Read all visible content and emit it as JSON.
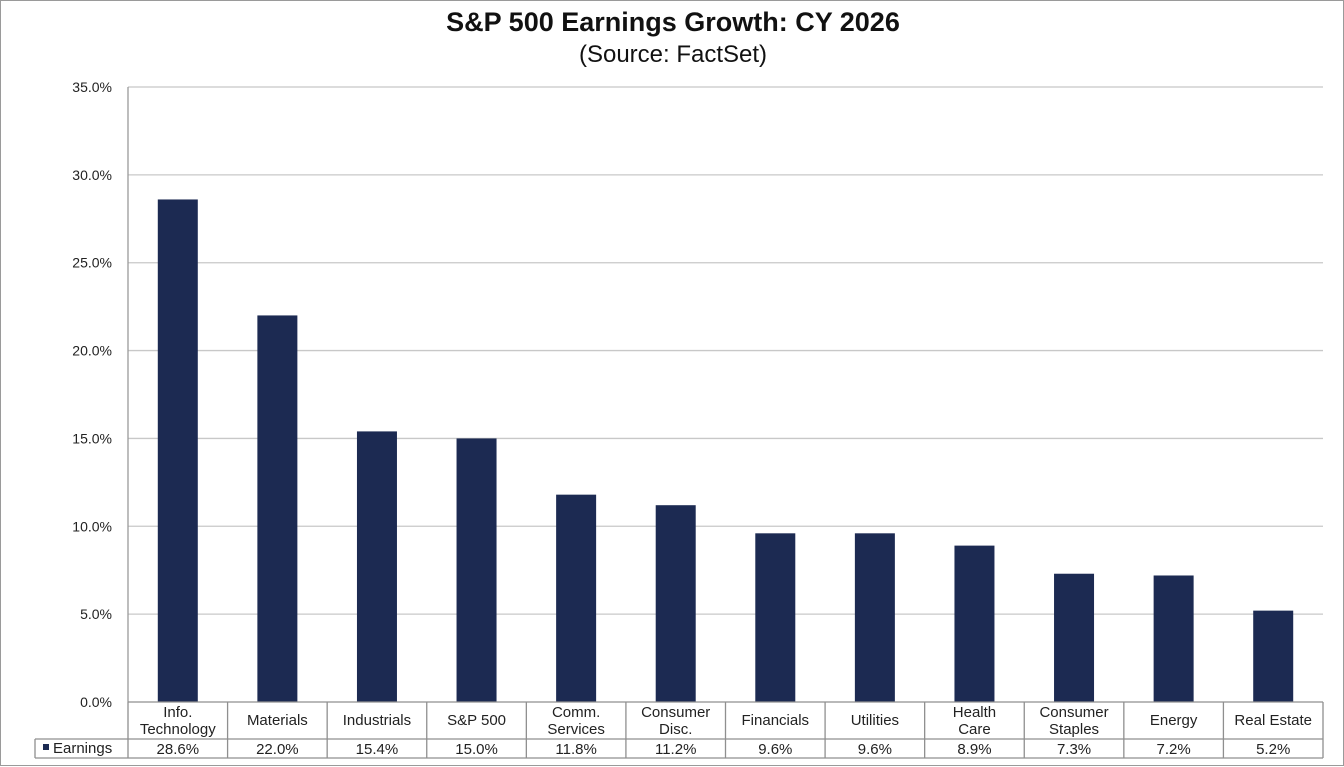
{
  "chart_data": {
    "type": "bar",
    "title": "S&P 500 Earnings Growth:  CY 2026",
    "subtitle": "(Source: FactSet)",
    "categories": [
      [
        "Info.",
        "Technology"
      ],
      [
        "Materials"
      ],
      [
        "Industrials"
      ],
      [
        "S&P 500"
      ],
      [
        "Comm.",
        "Services"
      ],
      [
        "Consumer",
        "Disc."
      ],
      [
        "Financials"
      ],
      [
        "Utilities"
      ],
      [
        "Health",
        "Care"
      ],
      [
        "Consumer",
        "Staples"
      ],
      [
        "Energy"
      ],
      [
        "Real Estate"
      ]
    ],
    "series": [
      {
        "name": "Earnings",
        "values": [
          28.6,
          22.0,
          15.4,
          15.0,
          11.8,
          11.2,
          9.6,
          9.6,
          8.9,
          7.3,
          7.2,
          5.2
        ],
        "labels": [
          "28.6%",
          "22.0%",
          "15.4%",
          "15.0%",
          "11.8%",
          "11.2%",
          "9.6%",
          "9.6%",
          "8.9%",
          "7.3%",
          "7.2%",
          "5.2%"
        ],
        "color": "#1c2a52"
      }
    ],
    "yticks": [
      "0.0%",
      "5.0%",
      "10.0%",
      "15.0%",
      "20.0%",
      "25.0%",
      "30.0%",
      "35.0%"
    ],
    "ylim": [
      0,
      35
    ],
    "ystep": 5,
    "grid": true,
    "data_table": true,
    "gridColor": "#c8c8c8"
  }
}
